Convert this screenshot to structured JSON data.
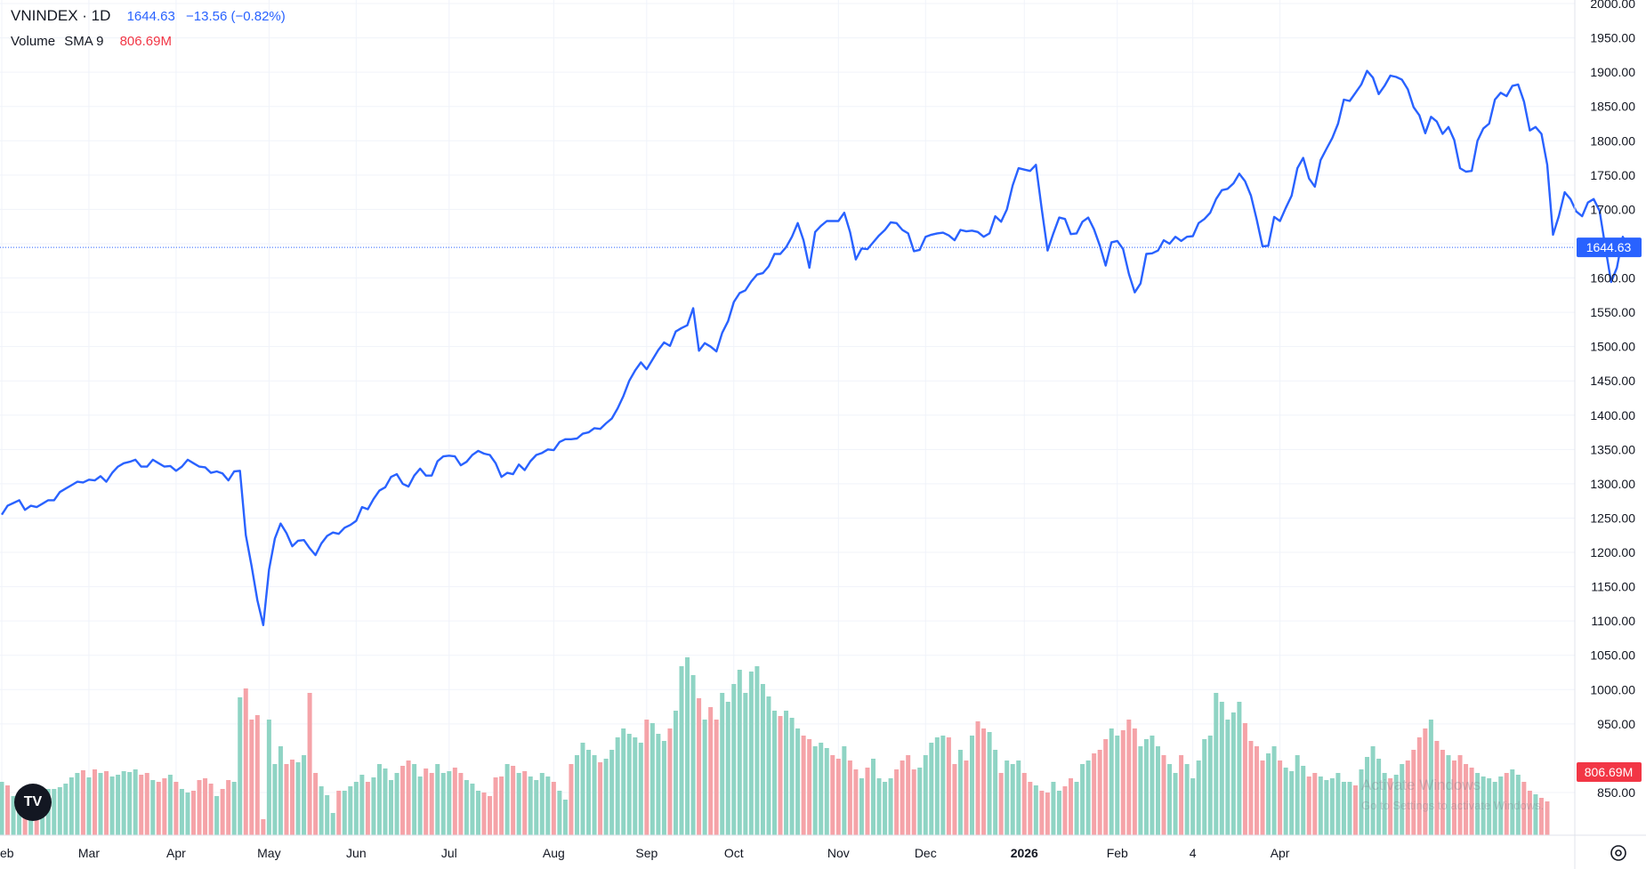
{
  "legend": {
    "symbol": "VNINDEX · 1D",
    "last": "1644.63",
    "change": "−13.56 (−0.82%)",
    "volume_label": "Volume",
    "sma_label": "SMA 9",
    "sma_value": "806.69M"
  },
  "watermark": {
    "line1": "Activate Windows",
    "line2": "Go to Settings to activate Windows."
  },
  "icons": {
    "logo": "tradingview-logo-icon",
    "settings": "gear-icon"
  },
  "colors": {
    "line": "#2962ff",
    "up_volume": "#8fd4c4",
    "down_volume": "#f5a3a8",
    "price_label_bg": "#2962ff",
    "volume_label_bg": "#f23645",
    "sma_text": "#f23645"
  },
  "chart_data": {
    "type": "line",
    "price_axis": {
      "ylim": [
        830,
        2010
      ],
      "ticks": [
        850,
        950,
        1000,
        1050,
        1100,
        1150,
        1200,
        1250,
        1300,
        1350,
        1400,
        1450,
        1500,
        1550,
        1600,
        1650,
        1700,
        1750,
        1800,
        1850,
        1900,
        1950,
        2000
      ],
      "tick_labels": [
        "850.00",
        "950.00",
        "1000.00",
        "1050.00",
        "1100.00",
        "1150.00",
        "1200.00",
        "1250.00",
        "1300.00",
        "1350.00",
        "1400.00",
        "1450.00",
        "1500.00",
        "1550.00",
        "1600.00",
        "1650.00",
        "1700.00",
        "1750.00",
        "1800.00",
        "1850.00",
        "1900.00",
        "1950.00",
        "2000.00"
      ],
      "last_price_label": "1644.63",
      "last_price": 1644.63,
      "volume_sma_label": "806.69M"
    },
    "time_axis": {
      "labels": [
        {
          "text": "eb",
          "index": 0
        },
        {
          "text": "Mar",
          "index": 15
        },
        {
          "text": "Apr",
          "index": 30
        },
        {
          "text": "May",
          "index": 46
        },
        {
          "text": "Jun",
          "index": 61
        },
        {
          "text": "Jul",
          "index": 77
        },
        {
          "text": "Aug",
          "index": 95
        },
        {
          "text": "Sep",
          "index": 111
        },
        {
          "text": "Oct",
          "index": 126
        },
        {
          "text": "Nov",
          "index": 144
        },
        {
          "text": "Dec",
          "index": 159
        },
        {
          "text": "2026",
          "index": 176,
          "bold": true
        },
        {
          "text": "Feb",
          "index": 192
        },
        {
          "text": "4",
          "index": 205
        },
        {
          "text": "Apr",
          "index": 220
        }
      ]
    },
    "grid": true,
    "price_series": {
      "name": "VNINDEX",
      "values": [
        1255,
        1268,
        1272,
        1276,
        1262,
        1268,
        1266,
        1271,
        1276,
        1276,
        1288,
        1293,
        1298,
        1303,
        1302,
        1306,
        1305,
        1311,
        1303,
        1316,
        1325,
        1330,
        1332,
        1335,
        1325,
        1325,
        1335,
        1330,
        1325,
        1326,
        1319,
        1325,
        1335,
        1330,
        1325,
        1324,
        1316,
        1318,
        1315,
        1305,
        1318,
        1319,
        1225,
        1180,
        1130,
        1094,
        1175,
        1220,
        1242,
        1228,
        1209,
        1217,
        1218,
        1206,
        1196,
        1213,
        1224,
        1229,
        1227,
        1236,
        1240,
        1246,
        1266,
        1263,
        1278,
        1290,
        1295,
        1310,
        1314,
        1300,
        1296,
        1312,
        1322,
        1312,
        1312,
        1333,
        1340,
        1341,
        1340,
        1327,
        1332,
        1342,
        1348,
        1344,
        1342,
        1330,
        1310,
        1316,
        1314,
        1328,
        1320,
        1333,
        1342,
        1345,
        1350,
        1349,
        1361,
        1365,
        1365,
        1366,
        1373,
        1375,
        1381,
        1380,
        1388,
        1395,
        1410,
        1428,
        1450,
        1465,
        1477,
        1467,
        1481,
        1495,
        1506,
        1501,
        1522,
        1527,
        1531,
        1556,
        1494,
        1505,
        1500,
        1493,
        1520,
        1537,
        1565,
        1578,
        1582,
        1595,
        1605,
        1607,
        1617,
        1635,
        1635,
        1645,
        1660,
        1680,
        1655,
        1615,
        1667,
        1676,
        1683,
        1683,
        1683,
        1695,
        1667,
        1627,
        1643,
        1642,
        1652,
        1662,
        1670,
        1681,
        1680,
        1670,
        1665,
        1639,
        1641,
        1660,
        1663,
        1665,
        1666,
        1662,
        1655,
        1670,
        1668,
        1669,
        1667,
        1660,
        1665,
        1690,
        1682,
        1700,
        1735,
        1760,
        1758,
        1756,
        1765,
        1700,
        1640,
        1665,
        1688,
        1686,
        1664,
        1665,
        1682,
        1688,
        1671,
        1647,
        1618,
        1652,
        1654,
        1642,
        1606,
        1579,
        1592,
        1635,
        1636,
        1640,
        1655,
        1650,
        1660,
        1654,
        1660,
        1661,
        1680,
        1686,
        1695,
        1715,
        1728,
        1730,
        1738,
        1752,
        1741,
        1720,
        1685,
        1646,
        1647,
        1689,
        1683,
        1702,
        1720,
        1760,
        1775,
        1745,
        1733,
        1772,
        1788,
        1804,
        1825,
        1860,
        1858,
        1870,
        1882,
        1902,
        1892,
        1868,
        1880,
        1895,
        1893,
        1889,
        1875,
        1849,
        1837,
        1811,
        1835,
        1828,
        1810,
        1820,
        1801,
        1760,
        1755,
        1756,
        1800,
        1818,
        1825,
        1860,
        1870,
        1865,
        1880,
        1882,
        1857,
        1815,
        1820,
        1810,
        1765,
        1663,
        1690,
        1725,
        1715,
        1697,
        1690,
        1710,
        1715,
        1698,
        1645,
        1594,
        1615,
        1660,
        1644.63
      ]
    },
    "volume_series": {
      "name": "Volume",
      "unit": "relative",
      "values": [
        60,
        56,
        44,
        46,
        52,
        45,
        49,
        48,
        52,
        52,
        54,
        58,
        65,
        70,
        73,
        65,
        74,
        70,
        72,
        66,
        68,
        72,
        71,
        74,
        68,
        70,
        62,
        60,
        64,
        68,
        60,
        52,
        48,
        50,
        62,
        64,
        58,
        44,
        52,
        62,
        60,
        155,
        165,
        130,
        135,
        18,
        130,
        80,
        100,
        80,
        85,
        82,
        90,
        160,
        70,
        55,
        45,
        25,
        50,
        50,
        55,
        60,
        68,
        60,
        65,
        80,
        75,
        62,
        70,
        78,
        84,
        80,
        66,
        75,
        70,
        80,
        70,
        72,
        76,
        70,
        62,
        58,
        50,
        48,
        44,
        65,
        66,
        80,
        78,
        70,
        72,
        66,
        62,
        70,
        66,
        60,
        50,
        40,
        80,
        90,
        104,
        96,
        90,
        82,
        86,
        96,
        110,
        120,
        114,
        110,
        104,
        130,
        126,
        114,
        106,
        120,
        140,
        190,
        200,
        180,
        154,
        130,
        144,
        130,
        160,
        150,
        170,
        186,
        160,
        184,
        190,
        170,
        156,
        140,
        134,
        140,
        132,
        120,
        112,
        108,
        100,
        104,
        98,
        90,
        86,
        100,
        84,
        74,
        64,
        76,
        86,
        64,
        60,
        64,
        74,
        84,
        90,
        74,
        76,
        90,
        104,
        110,
        112,
        110,
        80,
        96,
        84,
        112,
        128,
        120,
        116,
        96,
        70,
        84,
        80,
        84,
        70,
        60,
        56,
        50,
        48,
        60,
        50,
        55,
        64,
        60,
        80,
        84,
        92,
        96,
        108,
        120,
        112,
        118,
        130,
        120,
        100,
        108,
        112,
        100,
        90,
        80,
        70,
        90,
        80,
        64,
        84,
        108,
        112,
        160,
        150,
        130,
        138,
        150,
        126,
        106,
        100,
        84,
        92,
        100,
        84,
        76,
        72,
        90,
        78,
        66,
        70,
        66,
        62,
        64,
        70,
        60,
        60,
        56,
        74,
        88,
        100,
        86,
        70,
        64,
        68,
        80,
        84,
        96,
        110,
        120,
        130,
        106,
        96,
        90,
        84,
        90,
        80,
        76,
        70,
        66,
        64,
        60,
        66,
        70,
        74,
        68,
        60,
        50,
        46,
        42,
        38
      ],
      "up": [
        1,
        0,
        1,
        1,
        0,
        1,
        0,
        1,
        1,
        1,
        1,
        1,
        1,
        1,
        0,
        1,
        0,
        1,
        0,
        1,
        1,
        1,
        1,
        1,
        0,
        0,
        1,
        0,
        0,
        1,
        0,
        1,
        1,
        0,
        0,
        0,
        0,
        1,
        0,
        0,
        1,
        1,
        0,
        0,
        0,
        0,
        1,
        1,
        1,
        0,
        0,
        1,
        1,
        0,
        0,
        1,
        1,
        1,
        0,
        1,
        1,
        1,
        1,
        0,
        1,
        1,
        1,
        1,
        1,
        0,
        0,
        1,
        1,
        0,
        0,
        1,
        1,
        1,
        0,
        0,
        1,
        1,
        1,
        0,
        0,
        0,
        0,
        1,
        0,
        1,
        0,
        1,
        1,
        1,
        1,
        0,
        1,
        1,
        0,
        1,
        1,
        1,
        1,
        0,
        1,
        1,
        1,
        1,
        1,
        1,
        1,
        0,
        1,
        1,
        1,
        0,
        1,
        1,
        1,
        1,
        0,
        1,
        0,
        0,
        1,
        1,
        1,
        1,
        1,
        1,
        1,
        1,
        1,
        1,
        0,
        1,
        1,
        1,
        0,
        0,
        1,
        1,
        1,
        0,
        0,
        1,
        0,
        0,
        1,
        0,
        1,
        1,
        1,
        1,
        0,
        0,
        0,
        0,
        1,
        1,
        1,
        1,
        1,
        0,
        0,
        1,
        0,
        1,
        0,
        0,
        1,
        1,
        0,
        1,
        1,
        1,
        0,
        0,
        1,
        0,
        0,
        1,
        1,
        0,
        0,
        1,
        1,
        1,
        0,
        0,
        0,
        1,
        1,
        0,
        0,
        0,
        1,
        1,
        1,
        1,
        0,
        1,
        1,
        0,
        1,
        1,
        1,
        1,
        1,
        1,
        1,
        1,
        1,
        1,
        0,
        0,
        0,
        0,
        1,
        1,
        0,
        1,
        1,
        1,
        1,
        0,
        0,
        1,
        1,
        1,
        1,
        1,
        1,
        0,
        1,
        1,
        1,
        1,
        1,
        0,
        1,
        1,
        0,
        0,
        0,
        0,
        1,
        0,
        0,
        1,
        0,
        0,
        0,
        0,
        1,
        1,
        1,
        1,
        1,
        0,
        1,
        1,
        0,
        0,
        1,
        0,
        0,
        0,
        1,
        1,
        0,
        0,
        0,
        0,
        0,
        0,
        1,
        1,
        0
      ]
    }
  }
}
